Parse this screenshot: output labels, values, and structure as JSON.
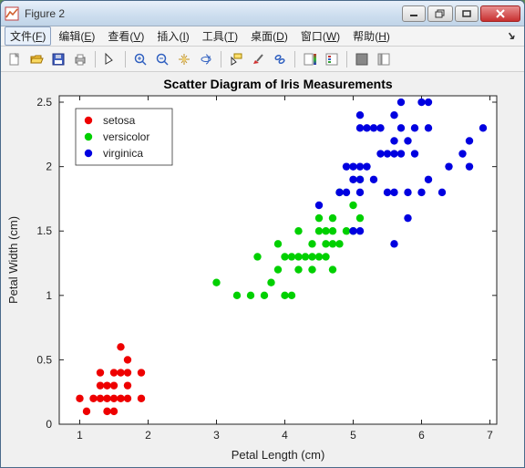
{
  "window": {
    "title": "Figure 2"
  },
  "menubar": {
    "items": [
      {
        "label": "文件",
        "mn": "F"
      },
      {
        "label": "编辑",
        "mn": "E"
      },
      {
        "label": "查看",
        "mn": "V"
      },
      {
        "label": "插入",
        "mn": "I"
      },
      {
        "label": "工具",
        "mn": "T"
      },
      {
        "label": "桌面",
        "mn": "D"
      },
      {
        "label": "窗口",
        "mn": "W"
      },
      {
        "label": "帮助",
        "mn": "H"
      }
    ]
  },
  "chart": {
    "type": "scatter",
    "title": "Scatter Diagram of Iris Measurements",
    "title_fontsize": 14,
    "xlabel": "Petal Length (cm)",
    "ylabel": "Petal Width (cm)",
    "label_fontsize": 13,
    "xlim": [
      0.7,
      7.1
    ],
    "ylim": [
      0,
      2.55
    ],
    "xticks": [
      1,
      2,
      3,
      4,
      5,
      6,
      7
    ],
    "yticks": [
      0,
      0.5,
      1,
      1.5,
      2,
      2.5
    ],
    "background_color": "#ffffff",
    "panel_color": "#f0f0f0",
    "axis_color": "#222222",
    "tick_fontsize": 12,
    "marker_size": 4.2,
    "legend": {
      "position": "top-left",
      "items": [
        {
          "label": "setosa",
          "color": "#ee0000"
        },
        {
          "label": "versicolor",
          "color": "#00d000"
        },
        {
          "label": "virginica",
          "color": "#0000e0"
        }
      ],
      "fontsize": 12,
      "border_color": "#333333"
    },
    "series": [
      {
        "name": "setosa",
        "color": "#ee0000",
        "points": [
          [
            1.0,
            0.2
          ],
          [
            1.1,
            0.1
          ],
          [
            1.2,
            0.2
          ],
          [
            1.3,
            0.2
          ],
          [
            1.3,
            0.3
          ],
          [
            1.3,
            0.4
          ],
          [
            1.4,
            0.1
          ],
          [
            1.4,
            0.2
          ],
          [
            1.4,
            0.3
          ],
          [
            1.5,
            0.1
          ],
          [
            1.5,
            0.2
          ],
          [
            1.5,
            0.3
          ],
          [
            1.5,
            0.4
          ],
          [
            1.6,
            0.2
          ],
          [
            1.6,
            0.4
          ],
          [
            1.6,
            0.6
          ],
          [
            1.7,
            0.2
          ],
          [
            1.7,
            0.3
          ],
          [
            1.7,
            0.4
          ],
          [
            1.7,
            0.5
          ],
          [
            1.9,
            0.2
          ],
          [
            1.9,
            0.4
          ]
        ]
      },
      {
        "name": "versicolor",
        "color": "#00d000",
        "points": [
          [
            3.0,
            1.1
          ],
          [
            3.3,
            1.0
          ],
          [
            3.5,
            1.0
          ],
          [
            3.6,
            1.3
          ],
          [
            3.7,
            1.0
          ],
          [
            3.8,
            1.1
          ],
          [
            3.9,
            1.2
          ],
          [
            3.9,
            1.4
          ],
          [
            4.0,
            1.0
          ],
          [
            4.0,
            1.3
          ],
          [
            4.1,
            1.0
          ],
          [
            4.1,
            1.3
          ],
          [
            4.2,
            1.2
          ],
          [
            4.2,
            1.3
          ],
          [
            4.2,
            1.5
          ],
          [
            4.3,
            1.3
          ],
          [
            4.4,
            1.2
          ],
          [
            4.4,
            1.3
          ],
          [
            4.4,
            1.4
          ],
          [
            4.5,
            1.3
          ],
          [
            4.5,
            1.5
          ],
          [
            4.5,
            1.6
          ],
          [
            4.6,
            1.3
          ],
          [
            4.6,
            1.4
          ],
          [
            4.6,
            1.5
          ],
          [
            4.7,
            1.2
          ],
          [
            4.7,
            1.4
          ],
          [
            4.7,
            1.5
          ],
          [
            4.7,
            1.6
          ],
          [
            4.8,
            1.4
          ],
          [
            4.8,
            1.8
          ],
          [
            4.9,
            1.5
          ],
          [
            5.0,
            1.5
          ],
          [
            5.0,
            1.7
          ],
          [
            5.1,
            1.6
          ],
          [
            5.1,
            1.9
          ]
        ]
      },
      {
        "name": "virginica",
        "color": "#0000e0",
        "points": [
          [
            4.5,
            1.7
          ],
          [
            4.8,
            1.8
          ],
          [
            4.9,
            1.8
          ],
          [
            4.9,
            2.0
          ],
          [
            5.0,
            1.5
          ],
          [
            5.0,
            1.9
          ],
          [
            5.0,
            2.0
          ],
          [
            5.1,
            1.5
          ],
          [
            5.1,
            1.8
          ],
          [
            5.1,
            1.9
          ],
          [
            5.1,
            2.0
          ],
          [
            5.1,
            2.3
          ],
          [
            5.1,
            2.4
          ],
          [
            5.2,
            2.0
          ],
          [
            5.2,
            2.3
          ],
          [
            5.3,
            1.9
          ],
          [
            5.3,
            2.3
          ],
          [
            5.4,
            2.1
          ],
          [
            5.4,
            2.3
          ],
          [
            5.5,
            1.8
          ],
          [
            5.5,
            2.1
          ],
          [
            5.6,
            1.4
          ],
          [
            5.6,
            1.8
          ],
          [
            5.6,
            2.1
          ],
          [
            5.6,
            2.2
          ],
          [
            5.6,
            2.4
          ],
          [
            5.7,
            2.1
          ],
          [
            5.7,
            2.3
          ],
          [
            5.7,
            2.5
          ],
          [
            5.8,
            1.6
          ],
          [
            5.8,
            1.8
          ],
          [
            5.8,
            2.2
          ],
          [
            5.9,
            2.1
          ],
          [
            5.9,
            2.3
          ],
          [
            6.0,
            1.8
          ],
          [
            6.0,
            2.5
          ],
          [
            6.1,
            1.9
          ],
          [
            6.1,
            2.3
          ],
          [
            6.1,
            2.5
          ],
          [
            6.3,
            1.8
          ],
          [
            6.4,
            2.0
          ],
          [
            6.6,
            2.1
          ],
          [
            6.7,
            2.0
          ],
          [
            6.7,
            2.2
          ],
          [
            6.9,
            2.3
          ]
        ]
      }
    ]
  }
}
